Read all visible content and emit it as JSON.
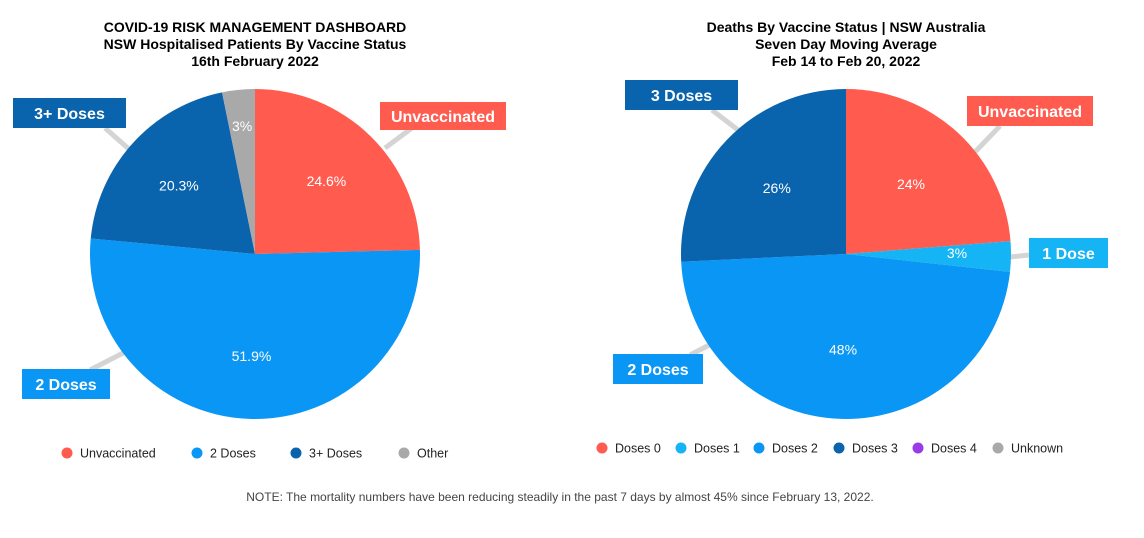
{
  "note": "NOTE: The mortality numbers have been reducing steadily in the past 7 days by almost 45% since February 13, 2022.",
  "chart_data": [
    {
      "type": "pie",
      "title_lines": [
        "COVID-19 RISK MANAGEMENT DASHBOARD",
        "NSW Hospitalised Patients By Vaccine Status",
        "16th February 2022"
      ],
      "slices": [
        {
          "name": "Unvaccinated",
          "value": 24.6,
          "label": "24.6%",
          "color": "#ff5b4f",
          "callout": "Unvaccinated"
        },
        {
          "name": "2 Doses",
          "value": 51.9,
          "label": "51.9%",
          "color": "#0a96f5",
          "callout": "2 Doses"
        },
        {
          "name": "3+ Doses",
          "value": 20.3,
          "label": "20.3%",
          "color": "#0a64ad",
          "callout": "3+ Doses"
        },
        {
          "name": "Other",
          "value": 3.2,
          "label": "3%",
          "color": "#a9a9a9",
          "callout": ""
        }
      ],
      "legend": [
        {
          "name": "Unvaccinated",
          "color": "#ff5b4f"
        },
        {
          "name": "2 Doses",
          "color": "#0a96f5"
        },
        {
          "name": "3+ Doses",
          "color": "#0a64ad"
        },
        {
          "name": "Other",
          "color": "#a9a9a9"
        }
      ],
      "legend_position": "bottom"
    },
    {
      "type": "pie",
      "title_lines": [
        "Deaths By Vaccine Status | NSW Australia",
        "Seven Day Moving Average",
        "Feb 14 to Feb 20, 2022"
      ],
      "slices": [
        {
          "name": "Doses 0",
          "value": 24,
          "label": "24%",
          "color": "#ff5b4f",
          "callout": "Unvaccinated"
        },
        {
          "name": "Doses 1",
          "value": 3,
          "label": "3%",
          "color": "#14b4f5",
          "callout": "1 Dose"
        },
        {
          "name": "Doses 2",
          "value": 48,
          "label": "48%",
          "color": "#0a96f5",
          "callout": "2 Doses"
        },
        {
          "name": "Doses 3",
          "value": 26,
          "label": "26%",
          "color": "#0a64ad",
          "callout": "3 Doses"
        }
      ],
      "legend": [
        {
          "name": "Doses 0",
          "color": "#ff5b4f"
        },
        {
          "name": "Doses 1",
          "color": "#14b4f5"
        },
        {
          "name": "Doses 2",
          "color": "#0a96f5"
        },
        {
          "name": "Doses 3",
          "color": "#0a64ad"
        },
        {
          "name": "Doses 4",
          "color": "#9b3be8"
        },
        {
          "name": "Unknown",
          "color": "#a9a9a9"
        }
      ],
      "legend_position": "bottom"
    }
  ]
}
